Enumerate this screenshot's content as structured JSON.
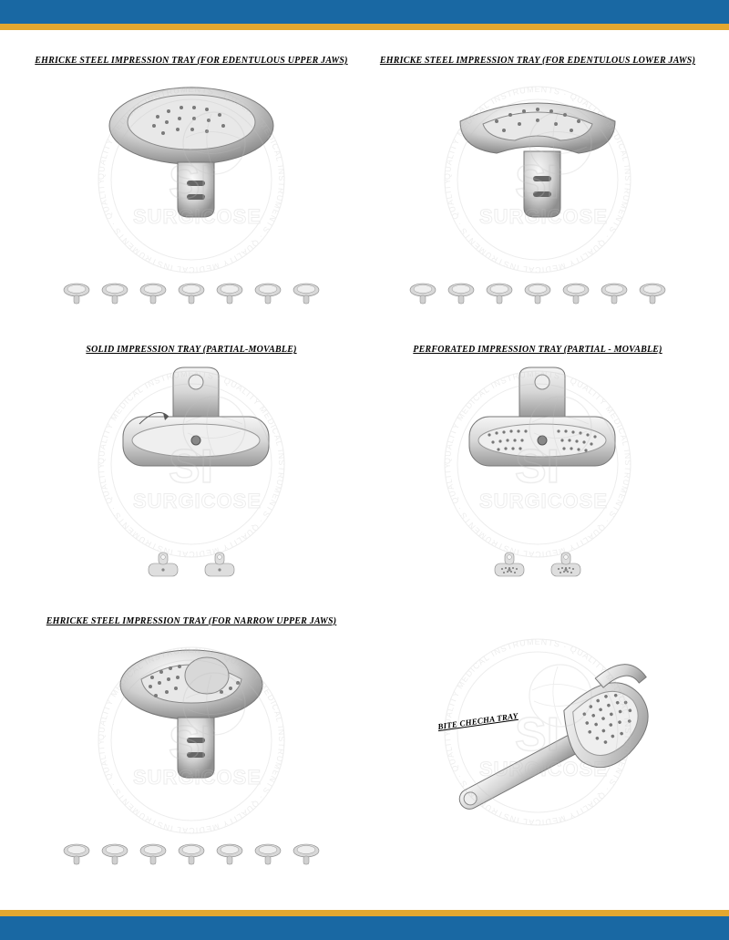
{
  "colors": {
    "blue_bar": "#1968a3",
    "gold_bar": "#e3a72f",
    "metal_light": "#f2f2f2",
    "metal_mid": "#cfcfcf",
    "metal_dark": "#9a9a9a",
    "outline": "#666666",
    "watermark": "#bfbfbf"
  },
  "watermark": {
    "brand_top": "SI",
    "brand_bottom": "SURGICOSE",
    "ring_text": "QUALITY MEDICAL INSTRUMENTS · QUALITY MEDICAL INSTRUMENTS · QUALITY MEDICAL INSTRUMENTS · QUALITY MEDICAL INSTRUMENTS · "
  },
  "products": [
    {
      "title": "EHRICKE STEEL IMPRESSION TRAY (FOR EDENTULOUS UPPER JAWS)",
      "type": "tray-upper",
      "thumb_count": 7
    },
    {
      "title": "EHRICKE STEEL IMPRESSION TRAY (FOR EDENTULOUS LOWER JAWS)",
      "type": "tray-lower",
      "thumb_count": 7
    },
    {
      "title": "SOLID IMPRESSION TRAY (PARTIAL-MOVABLE)",
      "type": "partial-solid",
      "thumb_count": 2
    },
    {
      "title": "PERFORATED IMPRESSION TRAY (PARTIAL - MOVABLE)",
      "type": "partial-perf",
      "thumb_count": 2
    },
    {
      "title": "EHRICKE STEEL IMPRESSION TRAY  (FOR NARROW UPPER JAWS)",
      "type": "tray-narrow",
      "thumb_count": 7
    },
    {
      "title": "BITE CHECHA TRAY",
      "type": "bite-tray",
      "thumb_count": 0
    }
  ]
}
